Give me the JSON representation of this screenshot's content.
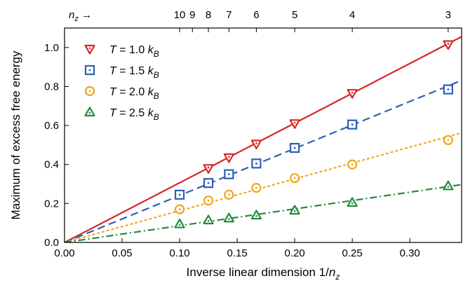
{
  "chart_data": {
    "type": "scatter",
    "title": "",
    "xlabel": "Inverse linear dimension 1/",
    "xlabel_var": "n",
    "xlabel_sub": "z",
    "ylabel": "Maximum of excess free energy",
    "xlim": [
      0.0,
      0.345
    ],
    "ylim": [
      0.0,
      1.1
    ],
    "x_ticks": [
      0.0,
      0.05,
      0.1,
      0.15,
      0.2,
      0.25,
      0.3
    ],
    "x_tick_labels": [
      "0.00",
      "0.05",
      "0.10",
      "0.15",
      "0.20",
      "0.25",
      "0.30"
    ],
    "y_ticks": [
      0.0,
      0.2,
      0.4,
      0.6,
      0.8,
      1.0
    ],
    "y_tick_labels": [
      "0.0",
      "0.2",
      "0.4",
      "0.6",
      "0.8",
      "1.0"
    ],
    "top_axis": {
      "label_var": "n",
      "label_sub": "z",
      "label_arrow": " →",
      "ticks": [
        10,
        9,
        8,
        7,
        6,
        5,
        4,
        3
      ],
      "tick_labels": [
        "10",
        "9",
        "8",
        "7",
        "6",
        "5",
        "4",
        "3"
      ]
    },
    "legend_position": "top-left",
    "grid": false,
    "x": [
      0.1,
      0.125,
      0.142857,
      0.166667,
      0.2,
      0.25,
      0.333333
    ],
    "series": [
      {
        "label_prefix": "T = 1.0 ",
        "label_k": "k",
        "label_sub": "B",
        "color": "#d62728",
        "marker": "triangle-down",
        "line": "solid",
        "slope": 3.06,
        "values": [
          null,
          0.38,
          0.435,
          0.505,
          0.61,
          0.765,
          1.015
        ]
      },
      {
        "label_prefix": "T = 1.5 ",
        "label_k": "k",
        "label_sub": "B",
        "color": "#2f5fb5",
        "marker": "square",
        "line": "dashed",
        "slope": 2.41,
        "values": [
          0.245,
          0.305,
          0.35,
          0.405,
          0.485,
          0.605,
          0.785
        ]
      },
      {
        "label_prefix": "T = 2.0 ",
        "label_k": "k",
        "label_sub": "B",
        "color": "#f2a51a",
        "marker": "circle",
        "line": "dotted",
        "slope": 1.63,
        "values": [
          0.17,
          0.215,
          0.245,
          0.28,
          0.33,
          0.4,
          0.525
        ]
      },
      {
        "label_prefix": "T = 2.5 ",
        "label_k": "k",
        "label_sub": "B",
        "color": "#228b3b",
        "marker": "triangle-up",
        "line": "dashdot",
        "slope": 0.86,
        "values": [
          0.095,
          0.115,
          0.125,
          0.14,
          0.165,
          0.205,
          0.29
        ]
      }
    ]
  }
}
